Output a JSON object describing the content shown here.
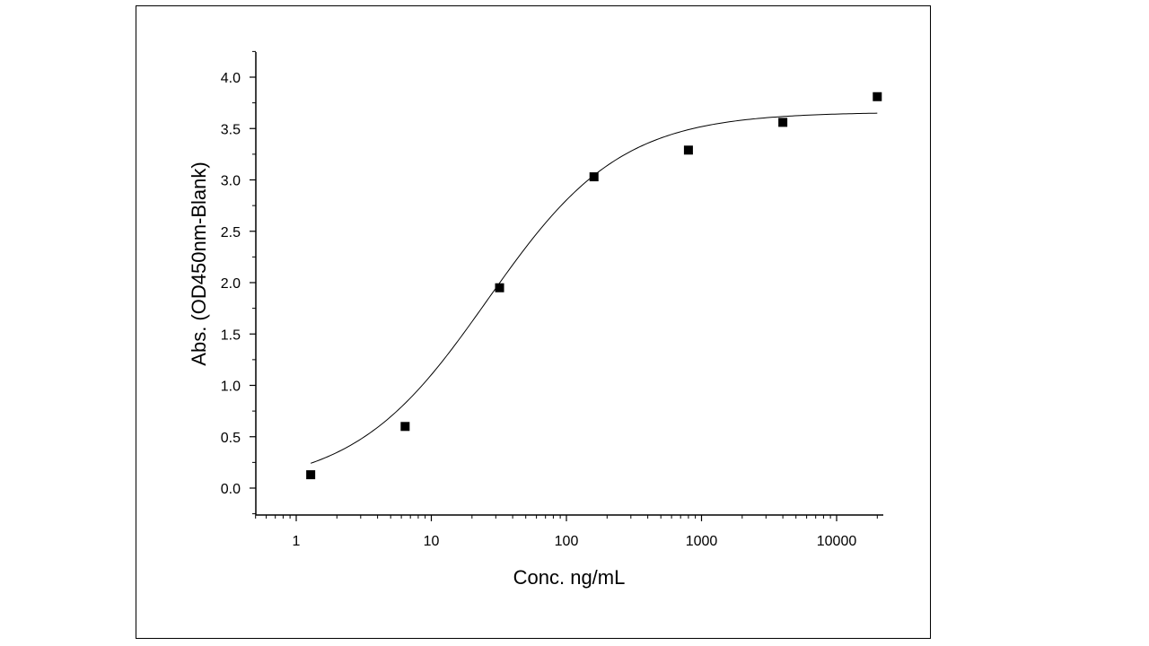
{
  "chart_data": {
    "type": "scatter",
    "title": "",
    "xlabel": "Conc. ng/mL",
    "ylabel": "Abs. (OD450nm-Blank)",
    "x_scale": "log",
    "xlim": [
      0.5,
      22000
    ],
    "ylim": [
      -0.25,
      4.25
    ],
    "x_ticks": [
      1,
      10,
      100,
      1000,
      10000
    ],
    "x_tick_labels": [
      "1",
      "10",
      "100",
      "1000",
      "10000"
    ],
    "y_ticks": [
      0.0,
      0.5,
      1.0,
      1.5,
      2.0,
      2.5,
      3.0,
      3.5,
      4.0
    ],
    "y_tick_labels": [
      "0.0",
      "0.5",
      "1.0",
      "1.5",
      "2.0",
      "2.5",
      "3.0",
      "3.5",
      "4.0"
    ],
    "grid": false,
    "legend": "none",
    "series": [
      {
        "marker": "square",
        "color": "#000000",
        "x": [
          1.28,
          6.4,
          32,
          160,
          800,
          4000,
          20000
        ],
        "y": [
          0.13,
          0.6,
          1.95,
          3.03,
          3.29,
          3.56,
          3.81
        ]
      }
    ],
    "fit_curve": {
      "color": "#000000",
      "model": "4PL",
      "bottom": 0.0,
      "top": 3.66,
      "ec50": 26,
      "hill": 0.88,
      "x_range": [
        1.28,
        20000
      ]
    }
  }
}
